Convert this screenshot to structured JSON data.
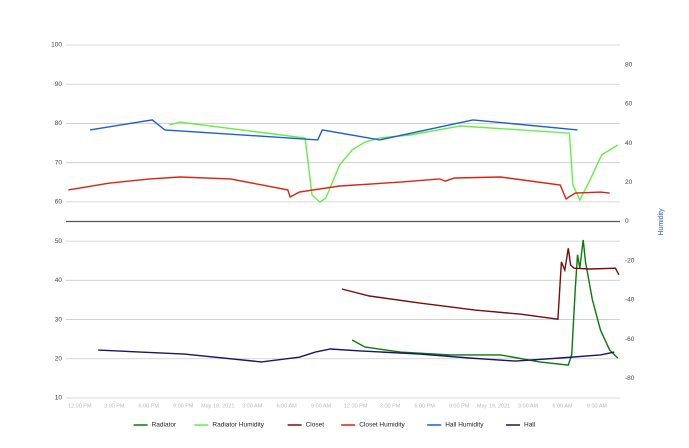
{
  "chart_data": {
    "type": "line",
    "y2label": "Humidity",
    "xlim": [
      -1.2,
      47
    ],
    "xticks": [
      {
        "value": 0,
        "label": "12:00 PM"
      },
      {
        "value": 3,
        "label": "3:00 PM"
      },
      {
        "value": 6,
        "label": "6:00 PM"
      },
      {
        "value": 9,
        "label": "9:00 PM"
      },
      {
        "value": 12,
        "label": "May 18, 2021"
      },
      {
        "value": 15,
        "label": "3:00 AM"
      },
      {
        "value": 18,
        "label": "6:00 AM"
      },
      {
        "value": 21,
        "label": "9:00 AM"
      },
      {
        "value": 24,
        "label": "12:00 PM"
      },
      {
        "value": 27,
        "label": "3:00 PM"
      },
      {
        "value": 30,
        "label": "6:00 PM"
      },
      {
        "value": 33,
        "label": "9:00 PM"
      },
      {
        "value": 36,
        "label": "May 19, 2021"
      },
      {
        "value": 39,
        "label": "3:00 AM"
      },
      {
        "value": 42,
        "label": "6:00 AM"
      },
      {
        "value": 45,
        "label": "9:00 AM"
      }
    ],
    "ylim": [
      10,
      100
    ],
    "yticks": [
      10,
      20,
      30,
      40,
      50,
      60,
      70,
      80,
      90,
      100
    ],
    "y2lim": [
      -90,
      90
    ],
    "y2ticks": [
      -80,
      -60,
      -40,
      -20,
      0,
      20,
      40,
      60,
      80
    ],
    "grid": true,
    "legend": "bottom",
    "series": [
      {
        "name": "Radiator",
        "color": "#0a7a0a",
        "x": [
          23.7,
          24.8,
          27.9,
          32.2,
          36.6,
          40.0,
          42.5,
          42.8,
          43.1,
          43.3,
          43.5,
          43.8,
          44.0,
          44.6,
          45.3,
          46.1,
          46.8
        ],
        "values": [
          24.8,
          23.0,
          21.7,
          21.0,
          21.0,
          19.2,
          18.4,
          21.0,
          37.5,
          46.5,
          43.1,
          50.3,
          44.7,
          35.0,
          27.3,
          22.2,
          20.2
        ]
      },
      {
        "name": "Radiator Humidity",
        "color": "#66ee44",
        "axis": "y2",
        "x": [
          7.8,
          8.7,
          19.6,
          20.2,
          20.9,
          21.4,
          22.6,
          23.7,
          24.8,
          26.1,
          28.7,
          33.1,
          42.6,
          42.9,
          43.5,
          44.4,
          45.4,
          46.8
        ],
        "values": [
          49.2,
          50.7,
          42.6,
          13.5,
          9.9,
          12,
          28.8,
          36.5,
          40.5,
          42.6,
          44.1,
          48.7,
          45.1,
          18.6,
          11,
          21.2,
          33.9,
          39
        ]
      },
      {
        "name": "Closet",
        "color": "#7a0c0c",
        "x": [
          22.8,
          25.2,
          29.6,
          34.4,
          38.3,
          41.6,
          41.9,
          42.2,
          42.5,
          42.7,
          43.0,
          44.4,
          46.6,
          46.9
        ],
        "values": [
          37.8,
          36.0,
          34.2,
          32.4,
          31.4,
          30.1,
          44.7,
          42.6,
          48.2,
          43.9,
          43.1,
          42.9,
          43.1,
          41.4
        ]
      },
      {
        "name": "Closet Humidity",
        "color": "#dd2211",
        "axis": "y2",
        "x": [
          -1.0,
          2.6,
          6.1,
          8.7,
          13.1,
          18.1,
          18.3,
          19.1,
          22.6,
          27.9,
          31.3,
          31.8,
          32.6,
          36.6,
          41.8,
          42.3,
          43.1,
          45.3,
          46.1
        ],
        "values": [
          16.1,
          19.6,
          21.7,
          22.7,
          21.7,
          16.1,
          12.5,
          15,
          18.1,
          20.1,
          21.7,
          20.6,
          22.2,
          22.7,
          18.6,
          11.5,
          14.5,
          15,
          14.5
        ]
      },
      {
        "name": "Hall Humidity",
        "color": "#1a5fd6",
        "axis": "y2",
        "x": [
          0.9,
          6.3,
          7.4,
          20.7,
          21.1,
          26.1,
          34.2,
          43.3
        ],
        "values": [
          46.7,
          51.8,
          46.7,
          41.6,
          46.7,
          41.6,
          51.8,
          46.7
        ]
      },
      {
        "name": "Hall",
        "color": "#1c1466",
        "x": [
          1.6,
          9.1,
          15.8,
          19.1,
          20.5,
          21.8,
          24.4,
          29.6,
          33.9,
          37.9,
          41.8,
          45.3,
          46.5
        ],
        "values": [
          22.2,
          21.2,
          19.2,
          20.4,
          21.7,
          22.5,
          22.0,
          21.2,
          20.2,
          19.4,
          20.2,
          21.0,
          21.7
        ]
      }
    ]
  }
}
